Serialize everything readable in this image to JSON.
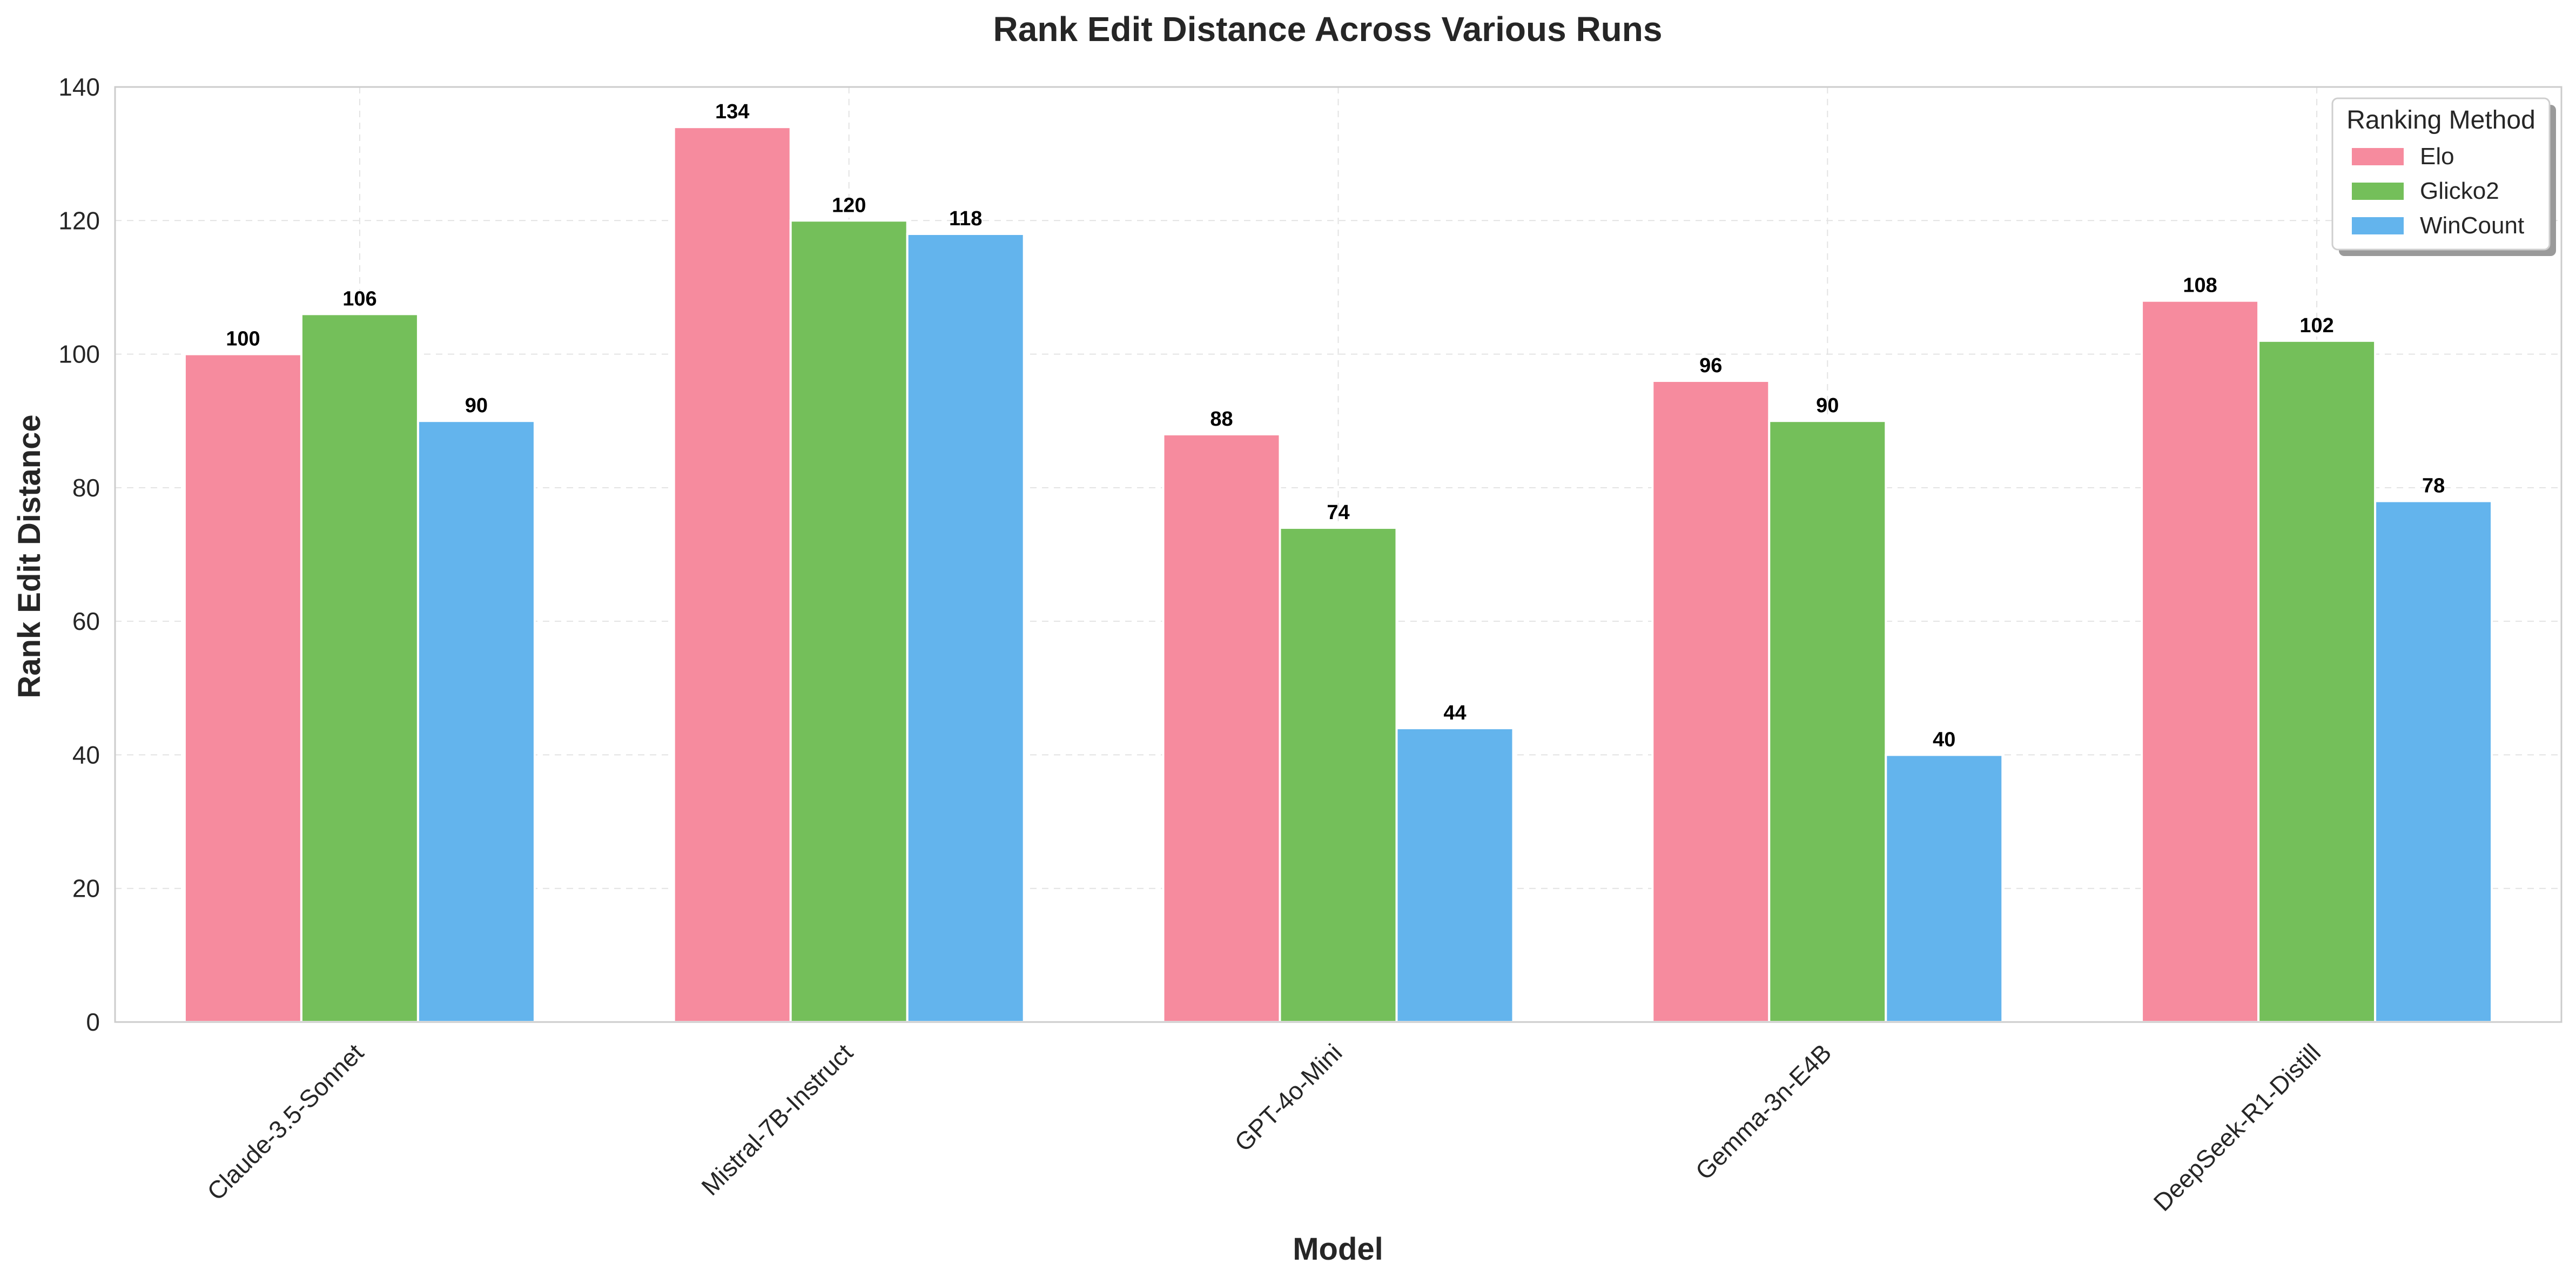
{
  "chart_data": {
    "type": "bar",
    "title": "Rank Edit Distance Across Various Runs",
    "xlabel": "Model",
    "ylabel": "Rank Edit Distance",
    "categories": [
      "Claude-3.5-Sonnet",
      "Mistral-7B-Instruct",
      "GPT-4o-Mini",
      "Gemma-3n-E4B",
      "DeepSeek-R1-Distill"
    ],
    "series": [
      {
        "name": "Elo",
        "color": "#f68b9e",
        "values": [
          100,
          134,
          88,
          96,
          108
        ]
      },
      {
        "name": "Glicko2",
        "color": "#74bf5a",
        "values": [
          106,
          120,
          74,
          90,
          102
        ]
      },
      {
        "name": "WinCount",
        "color": "#63b4ed",
        "values": [
          90,
          118,
          44,
          40,
          78
        ]
      }
    ],
    "ylim": [
      0,
      140
    ],
    "yticks": [
      0,
      20,
      40,
      60,
      80,
      100,
      120,
      140
    ],
    "grid": true,
    "legend": {
      "title": "Ranking Method",
      "position": "top-right"
    },
    "data_labels": true
  }
}
